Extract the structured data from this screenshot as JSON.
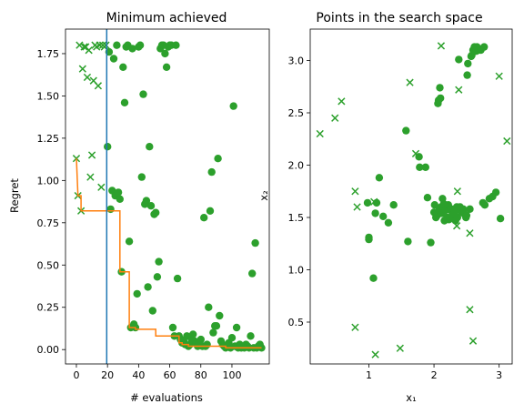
{
  "chart_data": [
    {
      "type": "scatter",
      "title": "Minimum achieved",
      "xlabel": "# evaluations",
      "ylabel": "Regret",
      "xlim": [
        -7,
        124
      ],
      "ylim": [
        -0.085,
        1.895
      ],
      "xticks": [
        0,
        20,
        40,
        60,
        80,
        100
      ],
      "yticks": [
        0.0,
        0.25,
        0.5,
        0.75,
        1.0,
        1.25,
        1.5,
        1.75
      ],
      "ytick_labels": [
        "0.00",
        "0.25",
        "0.50",
        "0.75",
        "1.00",
        "1.25",
        "1.50",
        "1.75"
      ],
      "vline": {
        "x": 19.5,
        "color": "#1f77b4"
      },
      "series": [
        {
          "kind": "x-marker",
          "color": "#2ca02c",
          "points": [
            [
              0,
              1.13
            ],
            [
              1,
              0.91
            ],
            [
              2,
              1.8
            ],
            [
              3,
              0.82
            ],
            [
              4,
              1.66
            ],
            [
              5,
              1.79
            ],
            [
              6,
              1.79
            ],
            [
              7,
              1.61
            ],
            [
              8,
              1.77
            ],
            [
              9,
              1.02
            ],
            [
              10,
              1.15
            ],
            [
              11,
              1.59
            ],
            [
              12,
              1.8
            ],
            [
              13,
              1.79
            ],
            [
              14,
              1.56
            ],
            [
              15,
              1.8
            ],
            [
              16,
              0.96
            ],
            [
              17,
              1.8
            ],
            [
              18,
              1.79
            ],
            [
              19,
              1.8
            ]
          ]
        },
        {
          "kind": "dot",
          "color": "#2ca02c",
          "points": [
            [
              20,
              1.2
            ],
            [
              21,
              1.76
            ],
            [
              22,
              0.83
            ],
            [
              23,
              0.94
            ],
            [
              24,
              1.72
            ],
            [
              25,
              0.91
            ],
            [
              26,
              1.8
            ],
            [
              27,
              0.93
            ],
            [
              28,
              0.89
            ],
            [
              29,
              0.46
            ],
            [
              30,
              1.67
            ],
            [
              31,
              1.46
            ],
            [
              32,
              1.79
            ],
            [
              33,
              1.8
            ],
            [
              34,
              0.64
            ],
            [
              35,
              0.13
            ],
            [
              36,
              1.78
            ],
            [
              37,
              0.15
            ],
            [
              38,
              0.13
            ],
            [
              39,
              0.33
            ],
            [
              40,
              1.79
            ],
            [
              41,
              1.8
            ],
            [
              42,
              1.02
            ],
            [
              43,
              1.51
            ],
            [
              44,
              0.86
            ],
            [
              45,
              0.88
            ],
            [
              46,
              0.37
            ],
            [
              47,
              1.2
            ],
            [
              48,
              0.85
            ],
            [
              49,
              0.23
            ],
            [
              50,
              0.8
            ],
            [
              51,
              0.81
            ],
            [
              52,
              0.43
            ],
            [
              53,
              0.52
            ],
            [
              54,
              1.78
            ],
            [
              55,
              1.8
            ],
            [
              56,
              1.8
            ],
            [
              57,
              1.75
            ],
            [
              58,
              1.67
            ],
            [
              59,
              1.79
            ],
            [
              60,
              1.8
            ],
            [
              61,
              1.8
            ],
            [
              62,
              0.13
            ],
            [
              63,
              0.08
            ],
            [
              64,
              1.8
            ],
            [
              65,
              0.42
            ],
            [
              66,
              0.08
            ],
            [
              67,
              0.06
            ],
            [
              68,
              0.04
            ],
            [
              69,
              0.05
            ],
            [
              70,
              0.03
            ],
            [
              71,
              0.08
            ],
            [
              72,
              0.02
            ],
            [
              73,
              0.03
            ],
            [
              74,
              0.06
            ],
            [
              75,
              0.09
            ],
            [
              76,
              0.05
            ],
            [
              77,
              0.04
            ],
            [
              78,
              0.02
            ],
            [
              79,
              0.04
            ],
            [
              80,
              0.06
            ],
            [
              81,
              0.02
            ],
            [
              82,
              0.78
            ],
            [
              83,
              0.02
            ],
            [
              84,
              0.03
            ],
            [
              85,
              0.25
            ],
            [
              86,
              0.82
            ],
            [
              87,
              1.05
            ],
            [
              88,
              0.1
            ],
            [
              89,
              0.14
            ],
            [
              90,
              0.14
            ],
            [
              91,
              1.13
            ],
            [
              92,
              0.2
            ],
            [
              93,
              0.05
            ],
            [
              94,
              0.03
            ],
            [
              95,
              0.02
            ],
            [
              96,
              0.01
            ],
            [
              97,
              0.02
            ],
            [
              98,
              0.04
            ],
            [
              99,
              0.01
            ],
            [
              100,
              0.07
            ],
            [
              101,
              1.44
            ],
            [
              102,
              0.02
            ],
            [
              103,
              0.13
            ],
            [
              104,
              0.01
            ],
            [
              105,
              0.03
            ],
            [
              106,
              0.01
            ],
            [
              107,
              0.02
            ],
            [
              108,
              0.01
            ],
            [
              109,
              0.03
            ],
            [
              110,
              0.02
            ],
            [
              111,
              0.01
            ],
            [
              112,
              0.08
            ],
            [
              113,
              0.45
            ],
            [
              114,
              0.01
            ],
            [
              115,
              0.63
            ],
            [
              116,
              0.01
            ],
            [
              117,
              0.02
            ],
            [
              118,
              0.03
            ],
            [
              119,
              0.01
            ]
          ]
        },
        {
          "kind": "line",
          "color": "#ff7f0e",
          "points": [
            [
              0,
              1.13
            ],
            [
              1,
              0.91
            ],
            [
              3,
              0.91
            ],
            [
              3,
              0.82
            ],
            [
              28,
              0.82
            ],
            [
              28,
              0.46
            ],
            [
              34,
              0.46
            ],
            [
              34,
              0.13
            ],
            [
              38,
              0.13
            ],
            [
              38,
              0.12
            ],
            [
              51,
              0.12
            ],
            [
              51,
              0.08
            ],
            [
              66,
              0.08
            ],
            [
              66,
              0.04
            ],
            [
              68,
              0.04
            ],
            [
              68,
              0.03
            ],
            [
              72,
              0.03
            ],
            [
              72,
              0.02
            ],
            [
              96,
              0.02
            ],
            [
              96,
              0.01
            ],
            [
              119,
              0.01
            ]
          ]
        }
      ]
    },
    {
      "type": "scatter",
      "title": "Points in the search space",
      "xlabel": "x₁",
      "ylabel": "x₂",
      "xlim": [
        0.1,
        3.2
      ],
      "ylim": [
        0.1,
        3.3
      ],
      "xticks": [
        1,
        2,
        3
      ],
      "yticks": [
        0.5,
        1.0,
        1.5,
        2.0,
        2.5,
        3.0
      ],
      "ytick_labels": [
        "0.5",
        "1.0",
        "1.5",
        "2.0",
        "2.5",
        "3.0"
      ],
      "series": [
        {
          "kind": "x-marker",
          "color": "#2ca02c",
          "points": [
            [
              0.25,
              2.3
            ],
            [
              0.48,
              2.45
            ],
            [
              0.58,
              2.61
            ],
            [
              0.79,
              1.75
            ],
            [
              0.82,
              1.6
            ],
            [
              0.79,
              0.45
            ],
            [
              1.08,
              1.65
            ],
            [
              1.1,
              0.19
            ],
            [
              1.48,
              0.25
            ],
            [
              1.63,
              2.79
            ],
            [
              1.72,
              2.11
            ],
            [
              2.11,
              3.14
            ],
            [
              2.38,
              2.72
            ],
            [
              2.36,
              1.75
            ],
            [
              2.35,
              1.42
            ],
            [
              2.55,
              1.35
            ],
            [
              2.55,
              0.62
            ],
            [
              2.6,
              0.32
            ],
            [
              3.0,
              2.85
            ],
            [
              3.12,
              2.23
            ]
          ]
        },
        {
          "kind": "dot",
          "color": "#2ca02c",
          "points": [
            [
              0.98,
              1.64
            ],
            [
              1.0,
              1.31
            ],
            [
              1.0,
              1.29
            ],
            [
              1.07,
              0.92
            ],
            [
              1.1,
              1.54
            ],
            [
              1.12,
              1.64
            ],
            [
              1.16,
              1.88
            ],
            [
              1.22,
              1.51
            ],
            [
              1.3,
              1.45
            ],
            [
              1.38,
              1.62
            ],
            [
              1.57,
              2.33
            ],
            [
              1.6,
              1.27
            ],
            [
              1.77,
              2.08
            ],
            [
              1.78,
              1.98
            ],
            [
              1.87,
              1.98
            ],
            [
              1.9,
              1.69
            ],
            [
              1.95,
              1.26
            ],
            [
              2.0,
              1.55
            ],
            [
              2.01,
              1.62
            ],
            [
              2.03,
              1.5
            ],
            [
              2.05,
              1.52
            ],
            [
              2.06,
              2.59
            ],
            [
              2.07,
              2.62
            ],
            [
              2.08,
              1.57
            ],
            [
              2.09,
              2.74
            ],
            [
              2.1,
              2.64
            ],
            [
              2.11,
              1.6
            ],
            [
              2.12,
              1.54
            ],
            [
              2.13,
              1.68
            ],
            [
              2.15,
              1.63
            ],
            [
              2.16,
              1.47
            ],
            [
              2.18,
              1.57
            ],
            [
              2.2,
              1.5
            ],
            [
              2.22,
              1.62
            ],
            [
              2.23,
              1.48
            ],
            [
              2.25,
              1.57
            ],
            [
              2.27,
              1.58
            ],
            [
              2.28,
              1.52
            ],
            [
              2.3,
              1.53
            ],
            [
              2.32,
              1.56
            ],
            [
              2.33,
              1.47
            ],
            [
              2.35,
              1.6
            ],
            [
              2.36,
              1.5
            ],
            [
              2.38,
              3.01
            ],
            [
              2.4,
              1.6
            ],
            [
              2.42,
              1.55
            ],
            [
              2.45,
              1.58
            ],
            [
              2.47,
              1.53
            ],
            [
              2.49,
              1.5
            ],
            [
              2.5,
              1.52
            ],
            [
              2.51,
              2.86
            ],
            [
              2.52,
              2.97
            ],
            [
              2.55,
              1.58
            ],
            [
              2.57,
              3.04
            ],
            [
              2.58,
              3.05
            ],
            [
              2.6,
              3.1
            ],
            [
              2.62,
              3.13
            ],
            [
              2.63,
              3.12
            ],
            [
              2.65,
              3.09
            ],
            [
              2.66,
              3.13
            ],
            [
              2.68,
              3.1
            ],
            [
              2.7,
              3.11
            ],
            [
              2.72,
              3.1
            ],
            [
              2.75,
              1.64
            ],
            [
              2.77,
              3.13
            ],
            [
              2.78,
              1.62
            ],
            [
              2.85,
              1.68
            ],
            [
              2.9,
              1.7
            ],
            [
              2.95,
              1.74
            ],
            [
              3.02,
              1.49
            ]
          ]
        }
      ]
    }
  ]
}
